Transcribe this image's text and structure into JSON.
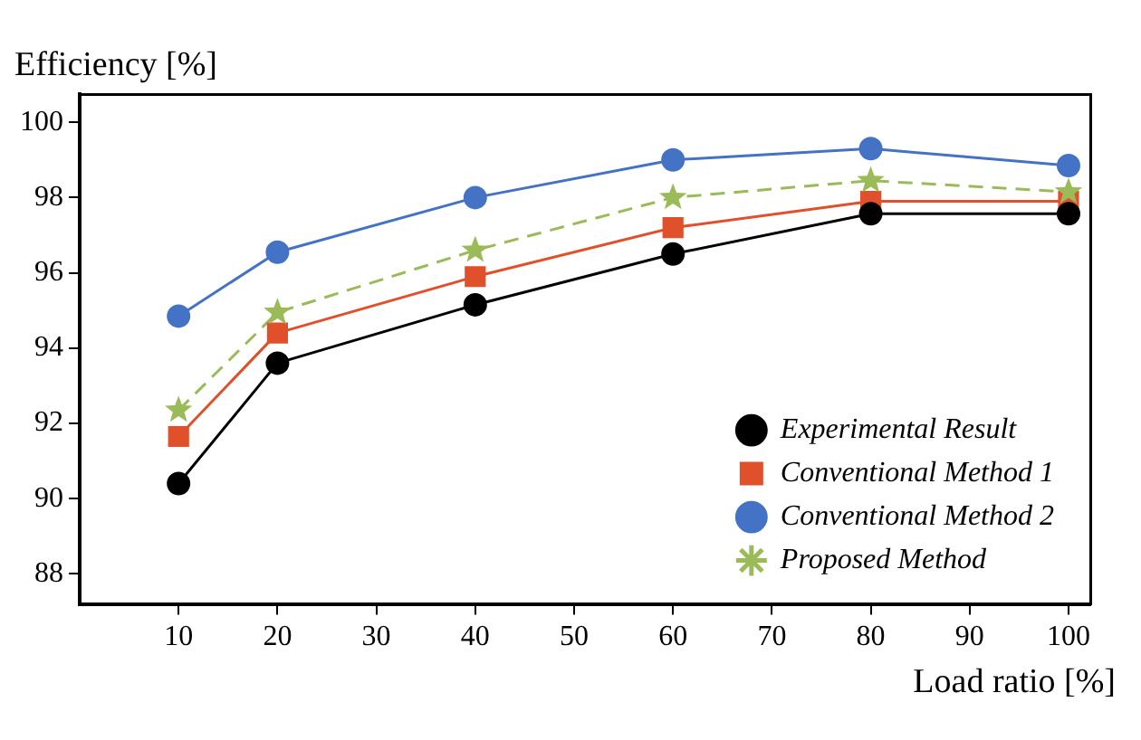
{
  "chart_data": {
    "type": "line",
    "xlabel": "Load ratio [%]",
    "ylabel": "Efficiency [%]",
    "x": [
      10,
      20,
      40,
      60,
      80,
      100
    ],
    "xlim": [
      0,
      102.2
    ],
    "xticks": [
      10,
      20,
      30,
      40,
      50,
      60,
      70,
      80,
      90,
      100
    ],
    "ylim": [
      87.2,
      100.75
    ],
    "yticks": [
      88,
      90,
      92,
      94,
      96,
      98,
      100
    ],
    "grid": false,
    "legend": "bottom right",
    "series": [
      {
        "name": "Experimental Result",
        "color": "#000000",
        "marker": "circle",
        "line_style": "solid",
        "values": [
          90.4,
          93.6,
          95.15,
          96.5,
          97.57,
          97.57
        ]
      },
      {
        "name": "Conventional Method 1",
        "color": "#e0502a",
        "marker": "square",
        "line_style": "solid",
        "values": [
          91.65,
          94.4,
          95.9,
          97.2,
          97.9,
          97.9
        ]
      },
      {
        "name": "Conventional Method 2",
        "color": "#4472c4",
        "marker": "circle",
        "line_style": "solid",
        "values": [
          94.85,
          96.55,
          98.0,
          99.0,
          99.3,
          98.85
        ]
      },
      {
        "name": "Proposed Method",
        "color": "#9bbb59",
        "marker": "star",
        "line_style": "dashed",
        "values": [
          92.35,
          94.95,
          96.6,
          98.0,
          98.45,
          98.15
        ]
      }
    ]
  }
}
